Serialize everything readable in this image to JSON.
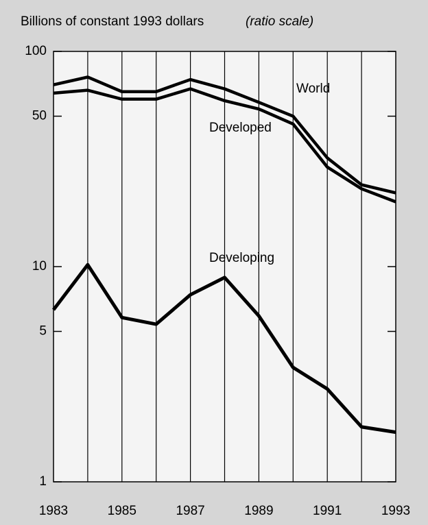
{
  "chart_data": {
    "type": "line",
    "title": "Billions of constant 1993 dollars",
    "y_scale_note": "(ratio scale)",
    "categories": [
      "1983",
      null,
      "1985",
      null,
      "1987",
      null,
      "1989",
      null,
      "1991",
      null,
      "1993"
    ],
    "series": [
      {
        "name": "World",
        "color": "#000000",
        "values": [
          70,
          76,
          65,
          65,
          74,
          67,
          58,
          50,
          32,
          24,
          22
        ]
      },
      {
        "name": "Developed",
        "color": "#000000",
        "values": [
          64,
          66,
          60,
          60,
          67,
          59,
          54,
          46,
          29,
          23,
          20
        ]
      },
      {
        "name": "Developing",
        "color": "#000000",
        "values": [
          6.3,
          10.2,
          5.8,
          5.4,
          7.4,
          8.9,
          5.9,
          3.4,
          2.7,
          1.8,
          1.7
        ]
      }
    ],
    "ylim": [
      1,
      100
    ],
    "yticks": [
      1,
      5,
      10,
      50,
      100
    ],
    "log_scale": true
  }
}
